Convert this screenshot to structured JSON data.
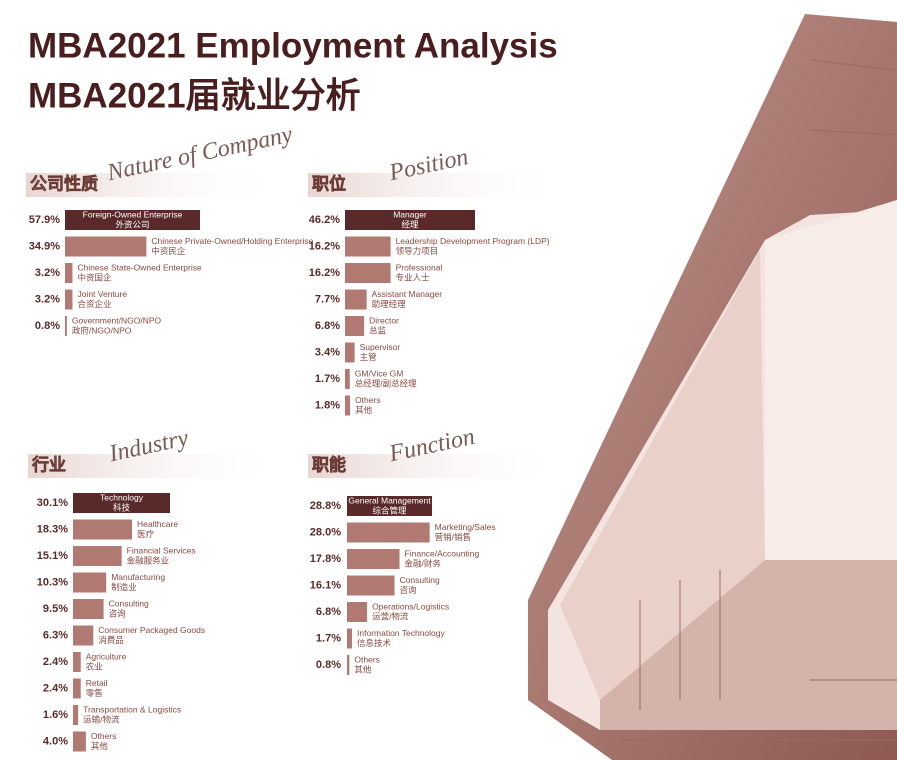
{
  "header": {
    "title_en": "MBA2021 Employment Analysis",
    "title_zh": "MBA2021届就业分析"
  },
  "chart_data": [
    {
      "type": "bar",
      "title": "公司性质",
      "subtitle": "Nature of Company",
      "color": "#b07a72",
      "highlight_color": "#5a2a2a",
      "categories": [
        "Foreign-Owned Enterprise",
        "Chinese Private-Owned/Holding Enterprise",
        "Chinese State-Owned Enterprise",
        "Joint Venture",
        "Government/NGO/NPO"
      ],
      "categories_zh": [
        "外资公司",
        "中资民企",
        "中资国企",
        "合资企业",
        "政府/NGO/NPO"
      ],
      "values": [
        57.9,
        34.9,
        3.2,
        3.2,
        0.8
      ],
      "value_labels": [
        "57.9%",
        "34.9%",
        "3.2%",
        "3.2%",
        "0.8%"
      ]
    },
    {
      "type": "bar",
      "title": "职位",
      "subtitle": "Position",
      "color": "#b07a72",
      "highlight_color": "#5a2a2a",
      "categories": [
        "Manager",
        "Leadership Development Program (LDP)",
        "Professional",
        "Assistant Manager",
        "Director",
        "Supervisor",
        "GM/Vice GM",
        "Others"
      ],
      "categories_zh": [
        "经理",
        "领导力项目",
        "专业人士",
        "助理经理",
        "总监",
        "主管",
        "总经理/副总经理",
        "其他"
      ],
      "values": [
        46.2,
        16.2,
        16.2,
        7.7,
        6.8,
        3.4,
        1.7,
        1.8
      ],
      "value_labels": [
        "46.2%",
        "16.2%",
        "16.2%",
        "7.7%",
        "6.8%",
        "3.4%",
        "1.7%",
        "1.8%"
      ]
    },
    {
      "type": "bar",
      "title": "行业",
      "subtitle": "Industry",
      "color": "#b07a72",
      "highlight_color": "#5a2a2a",
      "categories": [
        "Technology",
        "Healthcare",
        "Financial Services",
        "Manufacturing",
        "Consulting",
        "Consumer Packaged Goods",
        "Agriculture",
        "Retail",
        "Transportation & Logistics",
        "Others"
      ],
      "categories_zh": [
        "科技",
        "医疗",
        "金融服务业",
        "制造业",
        "咨询",
        "消费品",
        "农业",
        "零售",
        "运输/物流",
        "其他"
      ],
      "values": [
        30.1,
        18.3,
        15.1,
        10.3,
        9.5,
        6.3,
        2.4,
        2.4,
        1.6,
        4.0
      ],
      "value_labels": [
        "30.1%",
        "18.3%",
        "15.1%",
        "10.3%",
        "9.5%",
        "6.3%",
        "2.4%",
        "2.4%",
        "1.6%",
        "4.0%"
      ]
    },
    {
      "type": "bar",
      "title": "职能",
      "subtitle": "Function",
      "color": "#b07a72",
      "highlight_color": "#5a2a2a",
      "categories": [
        "General Management",
        "Marketing/Sales",
        "Finance/Accounting",
        "Consulting",
        "Operations/Logistics",
        "Information Technology",
        "Others"
      ],
      "categories_zh": [
        "综合管理",
        "营销/销售",
        "金融/财务",
        "咨询",
        "运营/物流",
        "信息技术",
        "其他"
      ],
      "values": [
        28.8,
        28.0,
        17.8,
        16.1,
        6.8,
        1.7,
        0.8
      ],
      "value_labels": [
        "28.8%",
        "28.0%",
        "17.8%",
        "16.1%",
        "6.8%",
        "1.7%",
        "0.8%"
      ]
    }
  ]
}
